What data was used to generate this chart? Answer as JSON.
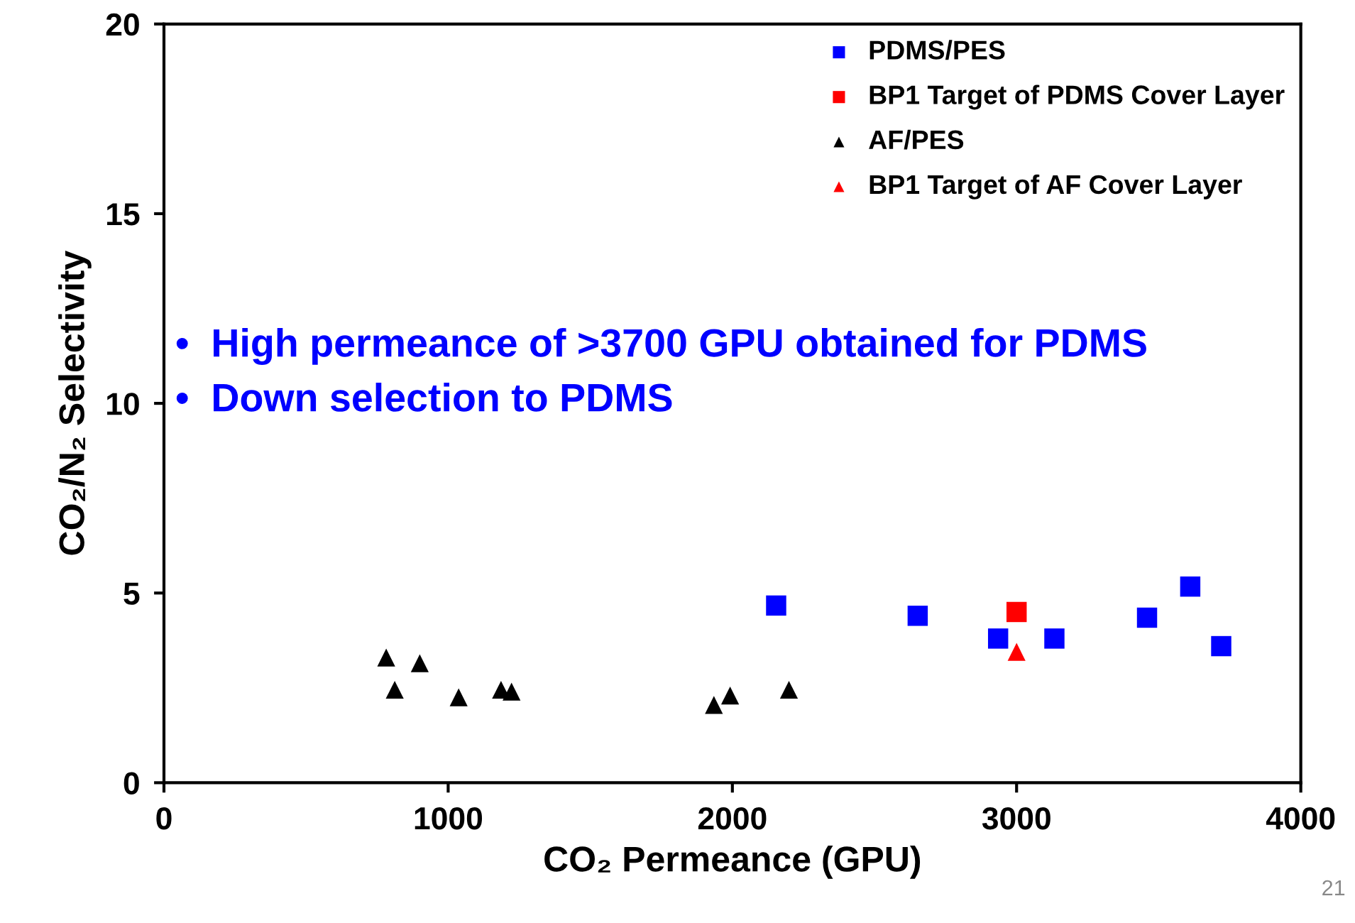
{
  "chart_data": {
    "type": "scatter",
    "xlabel": "CO₂ Permeance (GPU)",
    "ylabel": "CO₂/N₂ Selectivity",
    "xlim": [
      0,
      4000
    ],
    "xticks": [
      0,
      1000,
      2000,
      3000,
      4000
    ],
    "ylim": [
      0,
      20
    ],
    "yticks": [
      0,
      5,
      10,
      15,
      20
    ],
    "grid": false,
    "legend": "top right",
    "series": [
      {
        "name": "PDMS/PES",
        "color": "#0000ff",
        "marker": "square",
        "x": [
          2154,
          2652,
          2935,
          3133,
          3459,
          3611,
          3720
        ],
        "values": [
          4.67,
          4.4,
          3.8,
          3.8,
          4.35,
          5.17,
          3.6
        ]
      },
      {
        "name": "BP1 Target of PDMS Cover Layer",
        "color": "#ff0000",
        "marker": "square",
        "x": [
          3000
        ],
        "values": [
          4.5
        ]
      },
      {
        "name": "AF/PES",
        "color": "#000000",
        "marker": "triangle",
        "x": [
          782,
          812,
          900,
          1037,
          1186,
          1223,
          1935,
          1992,
          2199
        ],
        "values": [
          3.3,
          2.45,
          3.15,
          2.25,
          2.45,
          2.4,
          2.05,
          2.3,
          2.45
        ]
      },
      {
        "name": "BP1 Target of AF Cover Layer",
        "color": "#ff0000",
        "marker": "triangle",
        "x": [
          3000
        ],
        "values": [
          3.45
        ]
      }
    ],
    "annotations": [
      "•  High permeance of >3700 GPU obtained for PDMS",
      "•  Down selection to PDMS",
      "21"
    ]
  }
}
